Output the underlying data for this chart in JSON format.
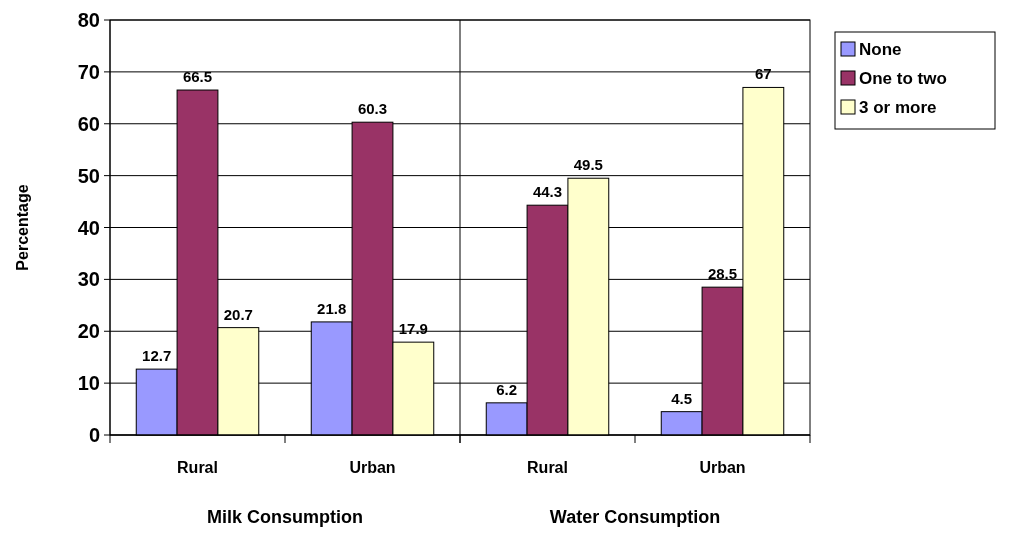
{
  "chart_data": {
    "type": "bar",
    "ylabel": "Percentage",
    "categories": [
      "Rural",
      "Urban",
      "Rural",
      "Urban"
    ],
    "series": [
      {
        "name": "None",
        "color": "#9999ff",
        "values": [
          12.7,
          21.8,
          6.2,
          4.5
        ]
      },
      {
        "name": "One to two",
        "color": "#993366",
        "values": [
          66.5,
          60.3,
          44.3,
          28.5
        ]
      },
      {
        "name": "3 or more",
        "color": "#ffffcc",
        "values": [
          20.7,
          17.9,
          49.5,
          67
        ]
      }
    ],
    "annotations": [
      "Milk Consumption",
      "Water Consumption"
    ],
    "ylim": [
      0,
      80
    ],
    "yticks": [
      0,
      10,
      20,
      30,
      40,
      50,
      60,
      70,
      80
    ],
    "grid": "y",
    "legend": "right",
    "data_labels": true
  }
}
